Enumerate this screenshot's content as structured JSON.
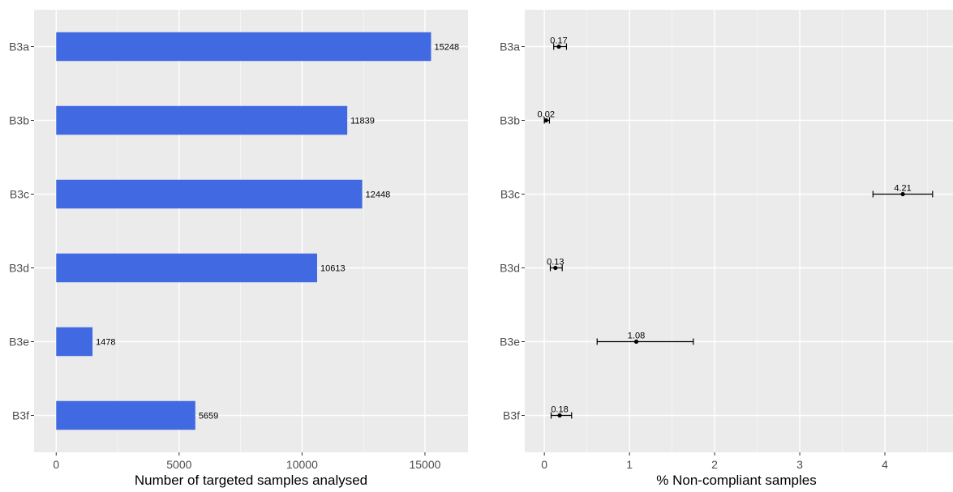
{
  "chart_data": [
    {
      "type": "bar",
      "orientation": "horizontal",
      "categories": [
        "B3a",
        "B3b",
        "B3c",
        "B3d",
        "B3e",
        "B3f"
      ],
      "values": [
        15248,
        11839,
        12448,
        10613,
        1478,
        5659
      ],
      "data_labels": [
        "15248",
        "11839",
        "12448",
        "10613",
        "1478",
        "5659"
      ],
      "xlabel": "Number of targeted samples analysed",
      "ylabel": "",
      "xticks": [
        0,
        5000,
        10000,
        15000
      ],
      "xtick_labels": [
        "0",
        "5000",
        "10000",
        "15000"
      ],
      "xlim": [
        -900,
        16750
      ],
      "grid": true,
      "bar_color": "#4169E1",
      "panel_bg": "#EBEBEB"
    },
    {
      "type": "scatter",
      "subtype": "point-with-horizontal-error-bars",
      "categories": [
        "B3a",
        "B3b",
        "B3c",
        "B3d",
        "B3e",
        "B3f"
      ],
      "values": [
        0.17,
        0.02,
        4.21,
        0.13,
        1.08,
        0.18
      ],
      "error_low": [
        0.11,
        0.0,
        3.86,
        0.07,
        0.62,
        0.08
      ],
      "error_high": [
        0.26,
        0.06,
        4.56,
        0.21,
        1.75,
        0.32
      ],
      "data_labels": [
        "0.17",
        "0.02",
        "4.21",
        "0.13",
        "1.08",
        "0.18"
      ],
      "xlabel": "% Non-compliant samples",
      "ylabel": "",
      "xticks": [
        0,
        1,
        2,
        3,
        4
      ],
      "xtick_labels": [
        "0",
        "1",
        "2",
        "3",
        "4"
      ],
      "xlim": [
        -0.23,
        4.8
      ],
      "grid": true,
      "point_color": "#000000",
      "panel_bg": "#EBEBEB"
    }
  ]
}
